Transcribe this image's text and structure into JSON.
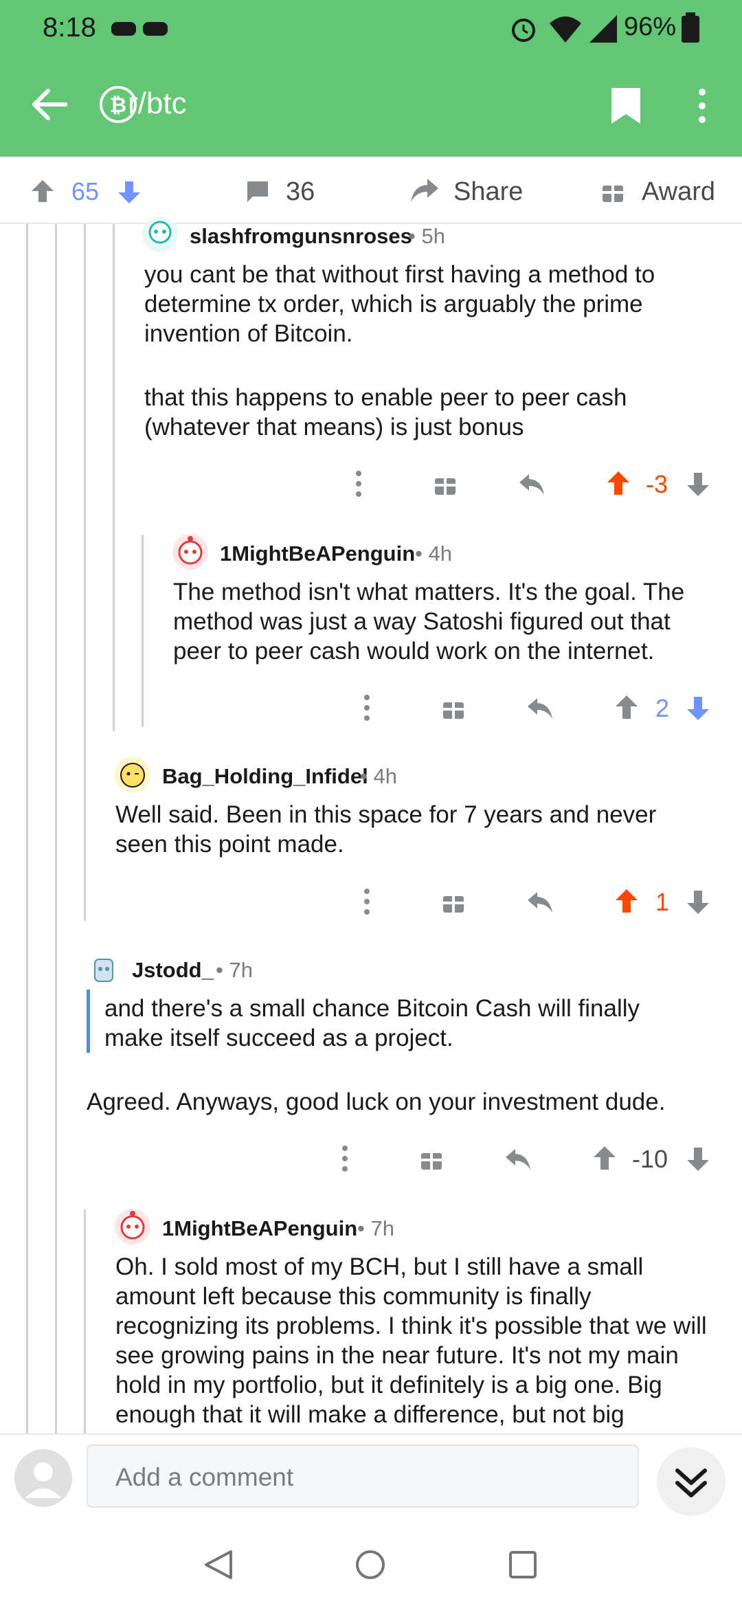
{
  "status": {
    "time": "8:18",
    "battery": "96%"
  },
  "header": {
    "subreddit": "r/btc"
  },
  "post_actions": {
    "upvotes": "65",
    "comments": "36",
    "share": "Share",
    "award": "Award"
  },
  "comments": [
    {
      "author": "slashfromgunsnroses",
      "time": "5h",
      "paragraphs": [
        "you cant be that without first having a method to determine tx order, which is arguably the prime invention of Bitcoin.",
        "that this happens to enable peer to peer cash (whatever that means) is just bonus"
      ],
      "score": "-3"
    },
    {
      "author": "1MightBeAPenguin",
      "time": "4h",
      "paragraphs": [
        "The method isn't what matters. It's the goal. The method was just a way Satoshi figured out that peer to peer cash would work on the internet."
      ],
      "score": "2"
    },
    {
      "author": "Bag_Holding_Infidel",
      "time": "4h",
      "paragraphs": [
        "Well said. Been in this space for 7 years and never seen this point made."
      ],
      "score": "1"
    },
    {
      "author": "Jstodd_",
      "time": "7h",
      "quote": "and there's a small chance Bitcoin Cash will finally make itself succeed as a project.",
      "paragraphs": [
        "Agreed. Anyways, good luck on your investment dude."
      ],
      "score": "-10"
    },
    {
      "author": "1MightBeAPenguin",
      "time": "7h",
      "paragraphs": [
        "Oh. I sold most of my BCH, but I still have a small amount left because this community is finally recognizing its problems. I think it's possible that we will see growing pains in the near future. It's not my main hold in my portfolio, but it definitely is a big one. Big enough that it will make a difference, but not big"
      ]
    }
  ],
  "comment_bar": {
    "placeholder": "Add a comment"
  },
  "colors": {
    "header_green": "#62c674",
    "upvote_orange": "#ff4500",
    "downvote_blue": "#7193ff",
    "quote_blue": "#4a90e2"
  }
}
